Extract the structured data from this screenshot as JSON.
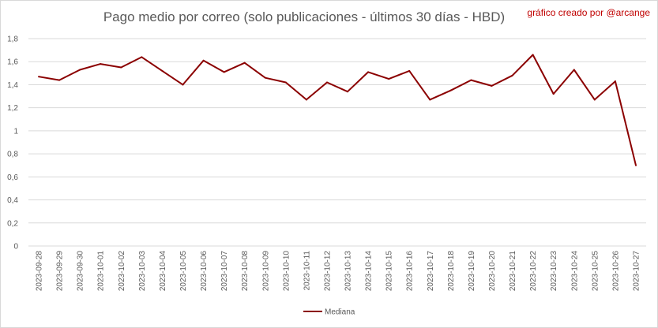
{
  "chart_data": {
    "type": "line",
    "title": "Pago medio por correo (solo publicaciones - últimos 30 días - HBD)",
    "annotation": "gráfico creado por @arcange",
    "xlabel": "",
    "ylabel": "",
    "ylim": [
      0,
      1.8
    ],
    "yticks": [
      "0",
      "0,2",
      "0,4",
      "0,6",
      "0,8",
      "1",
      "1,2",
      "1,4",
      "1,6",
      "1,8"
    ],
    "grid": true,
    "legend_position": "bottom",
    "line_color": "#8b0000",
    "categories": [
      "2023-09-28",
      "2023-09-29",
      "2023-09-30",
      "2023-10-01",
      "2023-10-02",
      "2023-10-03",
      "2023-10-04",
      "2023-10-05",
      "2023-10-06",
      "2023-10-07",
      "2023-10-08",
      "2023-10-09",
      "2023-10-10",
      "2023-10-11",
      "2023-10-12",
      "2023-10-13",
      "2023-10-14",
      "2023-10-15",
      "2023-10-16",
      "2023-10-17",
      "2023-10-18",
      "2023-10-19",
      "2023-10-20",
      "2023-10-21",
      "2023-10-22",
      "2023-10-23",
      "2023-10-24",
      "2023-10-25",
      "2023-10-26",
      "2023-10-27"
    ],
    "series": [
      {
        "name": "Mediana",
        "values": [
          1.47,
          1.44,
          1.53,
          1.58,
          1.55,
          1.64,
          1.52,
          1.4,
          1.61,
          1.51,
          1.59,
          1.46,
          1.42,
          1.27,
          1.42,
          1.34,
          1.51,
          1.45,
          1.52,
          1.27,
          1.35,
          1.44,
          1.39,
          1.48,
          1.66,
          1.32,
          1.53,
          1.27,
          1.43,
          0.7
        ]
      }
    ]
  }
}
